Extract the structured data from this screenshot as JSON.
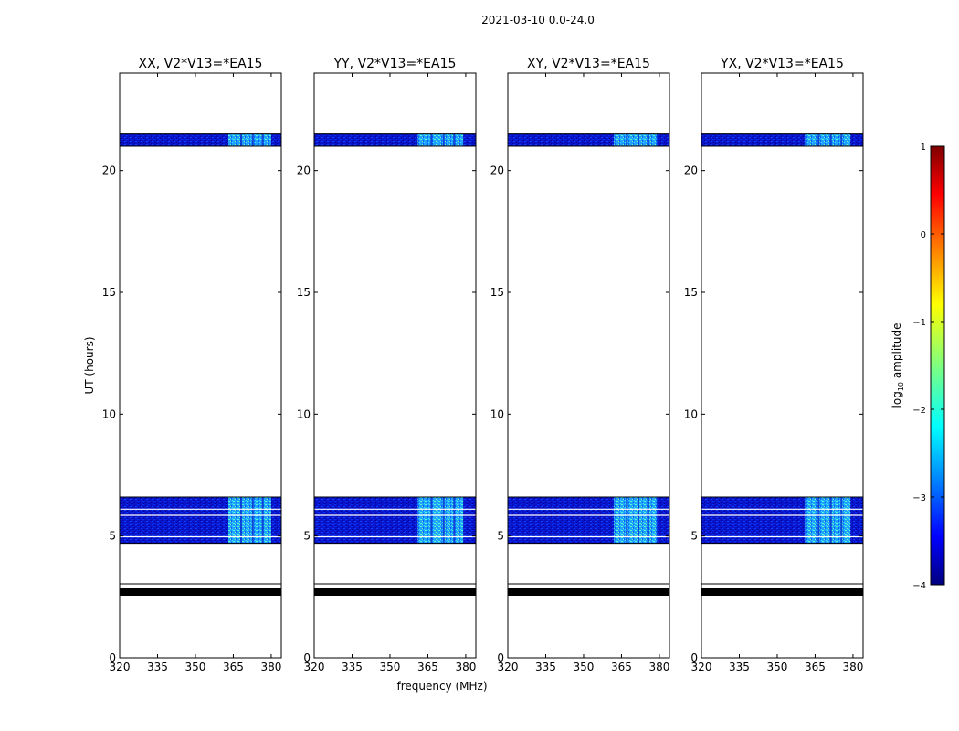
{
  "chart_data": {
    "type": "heatmap",
    "suptitle": "2021-03-10 0.0-24.0",
    "xlabel": "frequency (MHz)",
    "ylabel": "UT (hours)",
    "xlim": [
      320,
      384
    ],
    "ylim": [
      0,
      24
    ],
    "xticks": [
      320,
      335,
      350,
      365,
      380
    ],
    "yticks": [
      0,
      5,
      10,
      15,
      20
    ],
    "panels": [
      {
        "title": "XX, V2*V13=*EA15",
        "bright_band_mhz": [
          363,
          380
        ]
      },
      {
        "title": "YY, V2*V13=*EA15",
        "bright_band_mhz": [
          361,
          379
        ]
      },
      {
        "title": "XY, V2*V13=*EA15",
        "bright_band_mhz": [
          362,
          379
        ]
      },
      {
        "title": "YX, V2*V13=*EA15",
        "bright_band_mhz": [
          361,
          379
        ]
      }
    ],
    "data_blocks_ut": [
      {
        "start": 21.0,
        "end": 21.5,
        "kind": "amplitude"
      },
      {
        "start": 4.7,
        "end": 6.6,
        "kind": "amplitude"
      },
      {
        "start": 2.55,
        "end": 2.85,
        "kind": "flagged"
      }
    ],
    "gap_lines_ut": [
      4.97,
      5.85,
      6.1
    ],
    "colorbar": {
      "label": "log10 amplitude",
      "range": [
        -4,
        1
      ],
      "ticks": [
        1,
        0,
        -1,
        -2,
        -3,
        -4
      ],
      "tick_labels": [
        "1",
        "0",
        "−1",
        "−2",
        "−3",
        "−4"
      ],
      "colormap": "jet"
    }
  }
}
